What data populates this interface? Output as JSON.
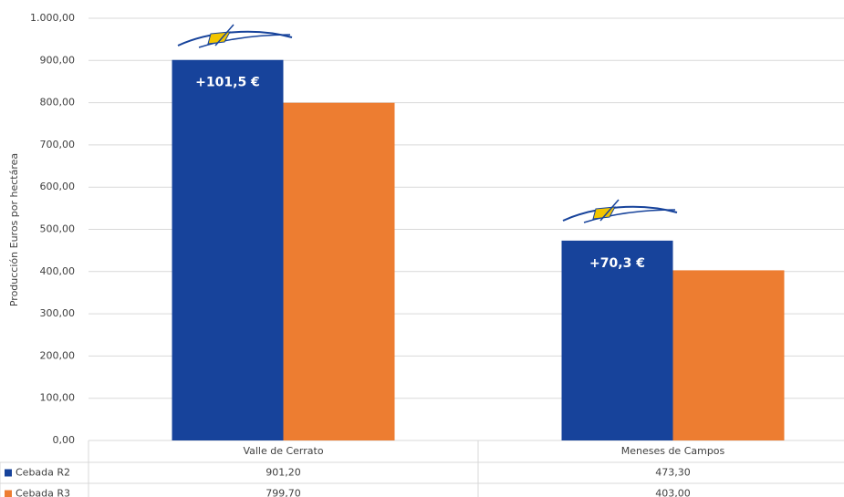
{
  "chart_data": {
    "type": "bar",
    "y_label": "Producción Euros por hectárea",
    "categories": [
      "Valle de Cerrato",
      "Meneses de Campos"
    ],
    "series": [
      {
        "name": "Cebada R2",
        "color": "#17439b",
        "values": [
          901.2,
          473.3
        ],
        "value_labels": [
          "901,20",
          "473,30"
        ]
      },
      {
        "name": "Cebada R3",
        "color": "#ed7d31",
        "values": [
          799.7,
          403.0
        ],
        "value_labels": [
          "799,70",
          "403,00"
        ]
      }
    ],
    "annotations": [
      "+101,5 €",
      "+70,3 €"
    ],
    "ylim": [
      0,
      1000
    ],
    "yticks": [
      {
        "value": 0,
        "label": "0,00"
      },
      {
        "value": 100,
        "label": "100,00"
      },
      {
        "value": 200,
        "label": "200,00"
      },
      {
        "value": 300,
        "label": "300,00"
      },
      {
        "value": 400,
        "label": "400,00"
      },
      {
        "value": 500,
        "label": "500,00"
      },
      {
        "value": 600,
        "label": "600,00"
      },
      {
        "value": 700,
        "label": "700,00"
      },
      {
        "value": 800,
        "label": "800,00"
      },
      {
        "value": 900,
        "label": "900,00"
      },
      {
        "value": 1000,
        "label": "1.000,00"
      }
    ],
    "grid": true
  }
}
